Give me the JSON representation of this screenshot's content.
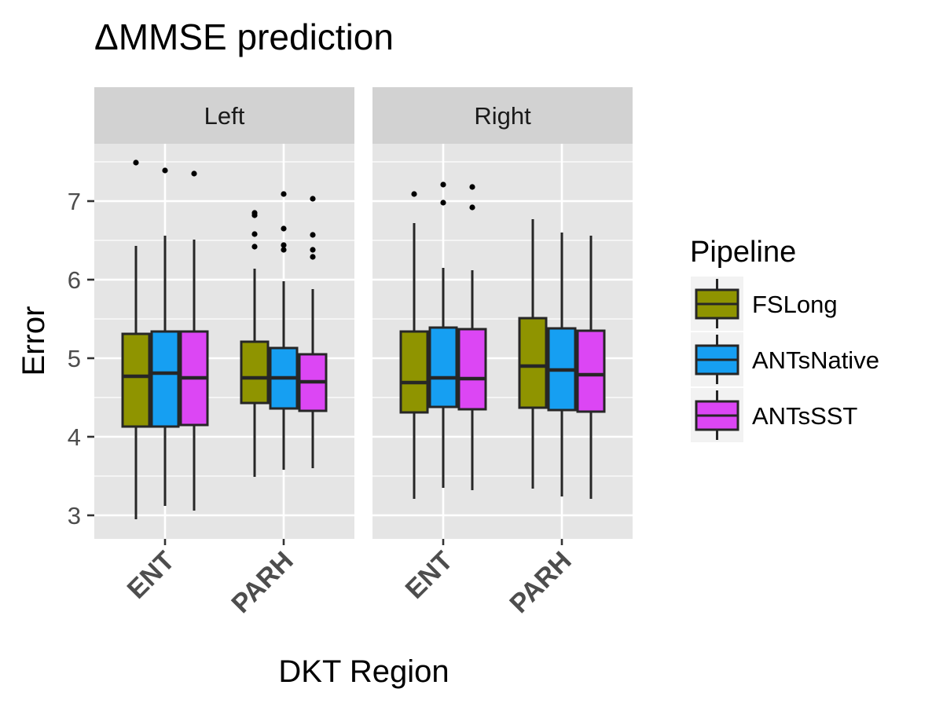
{
  "chart_data": {
    "type": "boxplot",
    "title": "ΔMMSE prediction",
    "xlabel": "DKT Region",
    "ylabel": "Error",
    "ylim": [
      2.7,
      7.73
    ],
    "y_ticks": [
      3,
      4,
      5,
      6,
      7
    ],
    "grid": true,
    "categories": [
      "ENT",
      "PARH"
    ],
    "facets": [
      {
        "label": "Left",
        "groups": [
          {
            "category": "ENT",
            "boxes": [
              {
                "series": "FSLong",
                "min": 2.95,
                "q1": 4.13,
                "median": 4.77,
                "q3": 5.31,
                "max": 6.43,
                "outliers": [
                  7.49
                ]
              },
              {
                "series": "ANTsNative",
                "min": 3.12,
                "q1": 4.13,
                "median": 4.81,
                "q3": 5.34,
                "max": 6.56,
                "outliers": [
                  7.39
                ]
              },
              {
                "series": "ANTsSST",
                "min": 3.06,
                "q1": 4.15,
                "median": 4.75,
                "q3": 5.34,
                "max": 6.51,
                "outliers": [
                  7.35
                ]
              }
            ]
          },
          {
            "category": "PARH",
            "boxes": [
              {
                "series": "FSLong",
                "min": 3.49,
                "q1": 4.43,
                "median": 4.75,
                "q3": 5.21,
                "max": 6.14,
                "outliers": [
                  6.42,
                  6.58,
                  6.82,
                  6.85
                ]
              },
              {
                "series": "ANTsNative",
                "min": 3.58,
                "q1": 4.36,
                "median": 4.75,
                "q3": 5.13,
                "max": 5.98,
                "outliers": [
                  6.38,
                  6.44,
                  6.65,
                  7.09
                ]
              },
              {
                "series": "ANTsSST",
                "min": 3.6,
                "q1": 4.33,
                "median": 4.7,
                "q3": 5.05,
                "max": 5.88,
                "outliers": [
                  6.29,
                  6.38,
                  6.57,
                  7.03
                ]
              }
            ]
          }
        ]
      },
      {
        "label": "Right",
        "groups": [
          {
            "category": "ENT",
            "boxes": [
              {
                "series": "FSLong",
                "min": 3.21,
                "q1": 4.31,
                "median": 4.69,
                "q3": 5.34,
                "max": 6.72,
                "outliers": [
                  7.09
                ]
              },
              {
                "series": "ANTsNative",
                "min": 3.35,
                "q1": 4.38,
                "median": 4.75,
                "q3": 5.39,
                "max": 6.15,
                "outliers": [
                  6.98,
                  7.21
                ]
              },
              {
                "series": "ANTsSST",
                "min": 3.32,
                "q1": 4.35,
                "median": 4.74,
                "q3": 5.37,
                "max": 6.12,
                "outliers": [
                  6.92,
                  7.18
                ]
              }
            ]
          },
          {
            "category": "PARH",
            "boxes": [
              {
                "series": "FSLong",
                "min": 3.34,
                "q1": 4.37,
                "median": 4.9,
                "q3": 5.51,
                "max": 6.77,
                "outliers": []
              },
              {
                "series": "ANTsNative",
                "min": 3.24,
                "q1": 4.34,
                "median": 4.85,
                "q3": 5.38,
                "max": 6.6,
                "outliers": []
              },
              {
                "series": "ANTsSST",
                "min": 3.21,
                "q1": 4.32,
                "median": 4.79,
                "q3": 5.35,
                "max": 6.56,
                "outliers": []
              }
            ]
          }
        ]
      }
    ],
    "legend": {
      "title": "Pipeline",
      "placement": "right",
      "items": [
        {
          "label": "FSLong",
          "color": "#8f9400"
        },
        {
          "label": "ANTsNative",
          "color": "#169ff2"
        },
        {
          "label": "ANTsSST",
          "color": "#dc46f4"
        }
      ]
    },
    "colors": {
      "panel_bg": "#e5e5e5",
      "strip_bg": "#d2d2d2",
      "grid": "#ffffff",
      "outline": "#262626"
    }
  }
}
